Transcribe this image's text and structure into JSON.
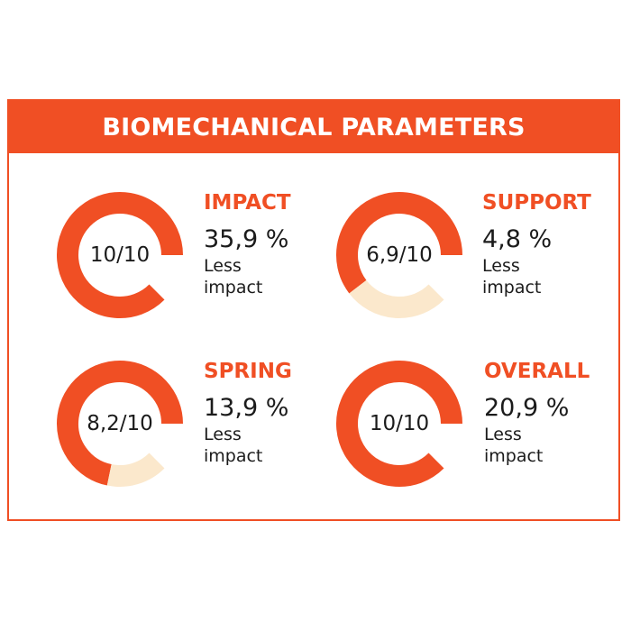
{
  "header": {
    "title": "BIOMECHANICAL PARAMETERS"
  },
  "colors": {
    "accent": "#f04f24",
    "remainder": "#fbe8cc",
    "text": "#1b1b1b"
  },
  "chart_data": {
    "type": "gauge",
    "max": 10,
    "items": [
      {
        "id": "impact",
        "name": "IMPACT",
        "score": 10,
        "score_label": "10/10",
        "percent": "35,9 %",
        "desc_line1": "Less",
        "desc_line2": "impact"
      },
      {
        "id": "support",
        "name": "SUPPORT",
        "score": 6.9,
        "score_label": "6,9/10",
        "percent": "4,8 %",
        "desc_line1": "Less",
        "desc_line2": "impact"
      },
      {
        "id": "spring",
        "name": "SPRING",
        "score": 8.2,
        "score_label": "8,2/10",
        "percent": "13,9 %",
        "desc_line1": "Less",
        "desc_line2": "impact"
      },
      {
        "id": "overall",
        "name": "OVERALL",
        "score": 10,
        "score_label": "10/10",
        "percent": "20,9 %",
        "desc_line1": "Less",
        "desc_line2": "impact"
      }
    ]
  }
}
